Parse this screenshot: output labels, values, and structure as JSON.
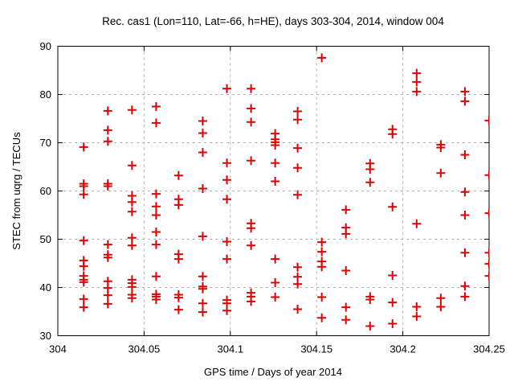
{
  "title": "Rec. cas1 (Lon=110, Lat=-66, h=HE), days 303-304, 2014, window 004",
  "chart_data": {
    "type": "scatter",
    "title": "Rec. cas1 (Lon=110, Lat=-66, h=HE), days 303-304, 2014, window 004",
    "xlabel": "GPS time / Days of year 2014",
    "ylabel": "STEC from uqrg / TECUs",
    "xlim": [
      304,
      304.25
    ],
    "ylim": [
      30,
      90
    ],
    "xticks": [
      304,
      304.05,
      304.1,
      304.15,
      304.2,
      304.25
    ],
    "xtick_labels": [
      "304",
      "304.05",
      "304.1",
      "304.15",
      "304.2",
      "304.25"
    ],
    "yticks": [
      30,
      40,
      50,
      60,
      70,
      80,
      90
    ],
    "ytick_labels": [
      "30",
      "40",
      "50",
      "60",
      "70",
      "80",
      "90"
    ],
    "grid": true,
    "legend_position": "none",
    "marker": {
      "shape": "plus",
      "color": "#e10000",
      "size": 11,
      "stroke_width": 2
    },
    "grid_color": "#b0b0b0",
    "axis_color": "#000000",
    "series": [
      {
        "name": "STEC",
        "points": [
          [
            304.015,
            69.1
          ],
          [
            304.015,
            61.5
          ],
          [
            304.015,
            61.0
          ],
          [
            304.015,
            59.3
          ],
          [
            304.015,
            49.7
          ],
          [
            304.015,
            45.6
          ],
          [
            304.015,
            44.4
          ],
          [
            304.015,
            42.4
          ],
          [
            304.015,
            41.6
          ],
          [
            304.015,
            41.1
          ],
          [
            304.015,
            37.6
          ],
          [
            304.015,
            35.9
          ],
          [
            304.029,
            76.6
          ],
          [
            304.029,
            72.6
          ],
          [
            304.029,
            70.3
          ],
          [
            304.029,
            61.5
          ],
          [
            304.029,
            61.0
          ],
          [
            304.029,
            48.9
          ],
          [
            304.029,
            46.8
          ],
          [
            304.029,
            46.2
          ],
          [
            304.029,
            41.3
          ],
          [
            304.029,
            39.9
          ],
          [
            304.029,
            38.4
          ],
          [
            304.029,
            36.6
          ],
          [
            304.043,
            76.8
          ],
          [
            304.043,
            65.3
          ],
          [
            304.043,
            59.0
          ],
          [
            304.043,
            57.7
          ],
          [
            304.043,
            55.7
          ],
          [
            304.043,
            50.3
          ],
          [
            304.043,
            48.7
          ],
          [
            304.043,
            41.6
          ],
          [
            304.043,
            40.9
          ],
          [
            304.043,
            40.1
          ],
          [
            304.043,
            38.5
          ],
          [
            304.043,
            37.8
          ],
          [
            304.057,
            77.5
          ],
          [
            304.057,
            74.1
          ],
          [
            304.057,
            59.4
          ],
          [
            304.057,
            56.8
          ],
          [
            304.057,
            55.0
          ],
          [
            304.057,
            51.5
          ],
          [
            304.057,
            48.9
          ],
          [
            304.057,
            42.3
          ],
          [
            304.057,
            38.6
          ],
          [
            304.057,
            38.1
          ],
          [
            304.057,
            37.5
          ],
          [
            304.07,
            63.2
          ],
          [
            304.07,
            58.3
          ],
          [
            304.07,
            57.1
          ],
          [
            304.07,
            46.9
          ],
          [
            304.07,
            45.9
          ],
          [
            304.07,
            38.5
          ],
          [
            304.07,
            37.9
          ],
          [
            304.07,
            35.4
          ],
          [
            304.084,
            74.5
          ],
          [
            304.084,
            72.0
          ],
          [
            304.084,
            68.0
          ],
          [
            304.084,
            60.5
          ],
          [
            304.084,
            50.6
          ],
          [
            304.084,
            42.3
          ],
          [
            304.084,
            40.2
          ],
          [
            304.084,
            39.7
          ],
          [
            304.084,
            36.7
          ],
          [
            304.084,
            34.9
          ],
          [
            304.098,
            81.2
          ],
          [
            304.098,
            65.8
          ],
          [
            304.098,
            62.3
          ],
          [
            304.098,
            58.3
          ],
          [
            304.098,
            49.5
          ],
          [
            304.098,
            45.9
          ],
          [
            304.098,
            37.4
          ],
          [
            304.098,
            36.7
          ],
          [
            304.098,
            35.2
          ],
          [
            304.112,
            81.2
          ],
          [
            304.112,
            77.1
          ],
          [
            304.112,
            74.3
          ],
          [
            304.112,
            66.3
          ],
          [
            304.112,
            53.3
          ],
          [
            304.112,
            52.3
          ],
          [
            304.112,
            48.7
          ],
          [
            304.112,
            38.9
          ],
          [
            304.112,
            38.1
          ],
          [
            304.112,
            37.1
          ],
          [
            304.126,
            71.9
          ],
          [
            304.126,
            70.7
          ],
          [
            304.126,
            70.1
          ],
          [
            304.126,
            69.5
          ],
          [
            304.126,
            65.8
          ],
          [
            304.126,
            62.0
          ],
          [
            304.126,
            45.9
          ],
          [
            304.126,
            41.0
          ],
          [
            304.126,
            38.0
          ],
          [
            304.139,
            76.5
          ],
          [
            304.139,
            74.8
          ],
          [
            304.139,
            68.9
          ],
          [
            304.139,
            64.8
          ],
          [
            304.139,
            59.2
          ],
          [
            304.139,
            44.2
          ],
          [
            304.139,
            42.2
          ],
          [
            304.139,
            40.7
          ],
          [
            304.139,
            35.5
          ],
          [
            304.153,
            87.6
          ],
          [
            304.153,
            49.4
          ],
          [
            304.153,
            47.4
          ],
          [
            304.153,
            45.4
          ],
          [
            304.153,
            44.3
          ],
          [
            304.153,
            38.0
          ],
          [
            304.153,
            33.7
          ],
          [
            304.167,
            56.1
          ],
          [
            304.167,
            52.4
          ],
          [
            304.167,
            51.1
          ],
          [
            304.167,
            43.5
          ],
          [
            304.167,
            35.9
          ],
          [
            304.167,
            33.3
          ],
          [
            304.181,
            65.7
          ],
          [
            304.181,
            64.5
          ],
          [
            304.181,
            61.8
          ],
          [
            304.181,
            38.1
          ],
          [
            304.181,
            37.5
          ],
          [
            304.181,
            32.0
          ],
          [
            304.194,
            72.8
          ],
          [
            304.194,
            71.8
          ],
          [
            304.194,
            56.7
          ],
          [
            304.194,
            42.5
          ],
          [
            304.194,
            36.9
          ],
          [
            304.194,
            32.5
          ],
          [
            304.208,
            84.4
          ],
          [
            304.208,
            82.6
          ],
          [
            304.208,
            80.6
          ],
          [
            304.208,
            53.2
          ],
          [
            304.208,
            36.0
          ],
          [
            304.208,
            34.0
          ],
          [
            304.222,
            69.6
          ],
          [
            304.222,
            69.0
          ],
          [
            304.222,
            63.7
          ],
          [
            304.222,
            37.8
          ],
          [
            304.222,
            36.0
          ],
          [
            304.236,
            80.6
          ],
          [
            304.236,
            78.6
          ],
          [
            304.236,
            67.5
          ],
          [
            304.236,
            59.8
          ],
          [
            304.236,
            55.0
          ],
          [
            304.236,
            47.2
          ],
          [
            304.236,
            40.3
          ],
          [
            304.236,
            38.1
          ],
          [
            304.25,
            74.6
          ],
          [
            304.25,
            63.3
          ],
          [
            304.25,
            55.4
          ],
          [
            304.25,
            47.2
          ],
          [
            304.25,
            44.9
          ],
          [
            304.25,
            42.4
          ]
        ]
      }
    ]
  }
}
